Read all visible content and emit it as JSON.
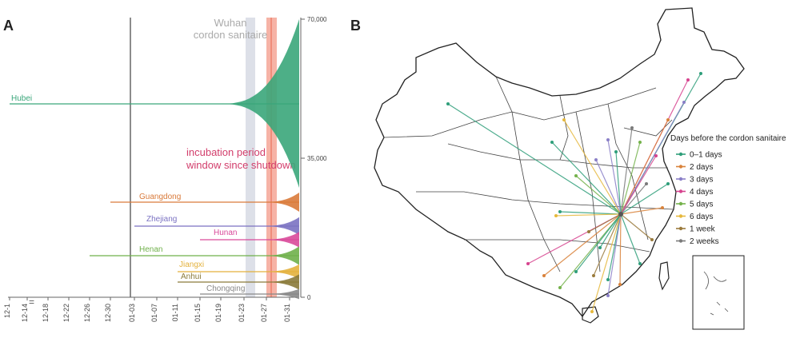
{
  "figure": {
    "panel_a_label": "A",
    "panel_b_label": "B"
  },
  "chart_data": [
    {
      "type": "area",
      "panel": "A",
      "title": "",
      "x_ticks": [
        "12-1",
        "12-14",
        "12-18",
        "12-22",
        "12-26",
        "12-30",
        "01-03",
        "01-07",
        "01-11",
        "01-15",
        "01-19",
        "01-23",
        "01-27",
        "01-31"
      ],
      "y_ticks": [
        "70,000",
        "35,000",
        "0"
      ],
      "annotations": {
        "cordon": "Wuhan\ncordon sanitaire",
        "incubation": "incubation period\nwindow since shutdown"
      },
      "series": [
        {
          "name": "Hubei",
          "color": "#3aa67a",
          "first_case": "12-1",
          "cases_01_31": 70000
        },
        {
          "name": "Guangdong",
          "color": "#d97a3a",
          "first_case": "12-30",
          "cases_01_31": 1500
        },
        {
          "name": "Zhejiang",
          "color": "#7b72c2",
          "first_case": "01-03",
          "cases_01_31": 1200
        },
        {
          "name": "Hunan",
          "color": "#d94a9a",
          "first_case": "01-15",
          "cases_01_31": 1000
        },
        {
          "name": "Henan",
          "color": "#6fb04a",
          "first_case": "12-26",
          "cases_01_31": 1270
        },
        {
          "name": "Jiangxi",
          "color": "#e3b13c",
          "first_case": "01-11",
          "cases_01_31": 930
        },
        {
          "name": "Anhui",
          "color": "#8a7a3a",
          "first_case": "01-11",
          "cases_01_31": 990
        },
        {
          "name": "Chongqing",
          "color": "#888888",
          "first_case": "01-15",
          "cases_01_31": 570
        }
      ]
    },
    {
      "type": "map",
      "panel": "B",
      "legend_title": "Days before the cordon sanitaire",
      "legend": [
        {
          "label": "0–1 days",
          "color": "#2e9e7a"
        },
        {
          "label": "2 days",
          "color": "#d9823a"
        },
        {
          "label": "3 days",
          "color": "#8a7fc7"
        },
        {
          "label": "4 days",
          "color": "#d6428e"
        },
        {
          "label": "5 days",
          "color": "#74b24b"
        },
        {
          "label": "6 days",
          "color": "#e6b83c"
        },
        {
          "label": "1 week",
          "color": "#9a7a3c"
        },
        {
          "label": "2 weeks",
          "color": "#7a7a7a"
        }
      ]
    }
  ]
}
